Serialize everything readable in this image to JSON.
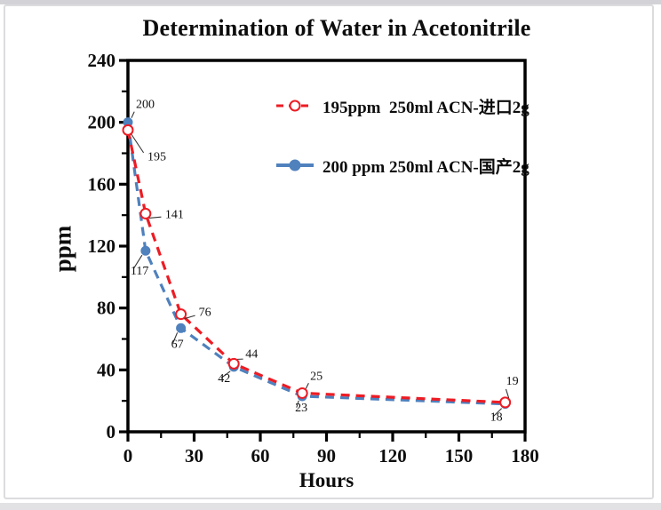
{
  "window": {
    "background": "#ffffff",
    "border_color": "#dcdcdf",
    "top_strip_color": "#d3d3d7",
    "bottom_strip_color": "#e2e2e4"
  },
  "chart_data": {
    "type": "line",
    "title": "Determination of Water in Acetonitrile",
    "xlabel": "Hours",
    "ylabel": "ppm",
    "xlim": [
      0,
      180
    ],
    "ylim": [
      0,
      240
    ],
    "x_major_ticks": [
      0,
      30,
      60,
      90,
      120,
      150,
      180
    ],
    "x_minor_step": 15,
    "y_major_ticks": [
      0,
      40,
      80,
      120,
      160,
      200,
      240
    ],
    "y_minor_step": 20,
    "grid": false,
    "legend_position": "upper-right-inside",
    "axis_color": "#000000",
    "series": [
      {
        "name": "195ppm  250ml ACN-进口2g",
        "color": "#ed1c24",
        "line_style": "dashed",
        "marker": "open-circle",
        "x": [
          0,
          8,
          24,
          48,
          79,
          171
        ],
        "values": [
          195,
          141,
          76,
          44,
          25,
          19
        ],
        "point_labels": [
          {
            "text": "195",
            "dx": 22,
            "dy": 34
          },
          {
            "text": "141",
            "dx": 22,
            "dy": 5
          },
          {
            "text": "76",
            "dx": 20,
            "dy": 2
          },
          {
            "text": "44",
            "dx": 13,
            "dy": -7
          },
          {
            "text": "25",
            "dx": 9,
            "dy": -15
          },
          {
            "text": "19",
            "dx": 1,
            "dy": -20
          }
        ]
      },
      {
        "name": "200 ppm 250ml ACN-国产2g",
        "color": "#4f81bd",
        "line_style": "dashed",
        "marker": "filled-circle",
        "x": [
          0,
          8,
          24,
          48,
          79,
          171
        ],
        "values": [
          200,
          117,
          67,
          42,
          23,
          18
        ],
        "point_labels": [
          {
            "text": "200",
            "dx": 9,
            "dy": -16
          },
          {
            "text": "117",
            "dx": -17,
            "dy": 27
          },
          {
            "text": "67",
            "dx": -11,
            "dy": 22
          },
          {
            "text": "42",
            "dx": -18,
            "dy": 17
          },
          {
            "text": "23",
            "dx": -8,
            "dy": 17
          },
          {
            "text": "18",
            "dx": -17,
            "dy": 19
          }
        ]
      }
    ]
  }
}
